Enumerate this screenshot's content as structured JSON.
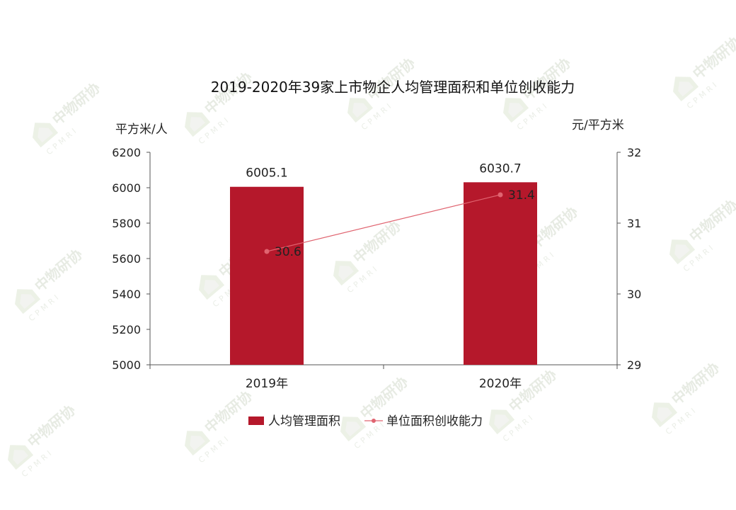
{
  "watermark": {
    "logo_text": "中物研协",
    "logo_sub": "CPMRI"
  },
  "chart_data": {
    "type": "bar",
    "title": "2019-2020年39家上市物企人均管理面积和单位创收能力",
    "categories": [
      "2019年",
      "2020年"
    ],
    "series": [
      {
        "name": "人均管理面积",
        "kind": "bar",
        "axis": "left",
        "color": "#B5182B",
        "values": [
          6005.1,
          6030.7
        ],
        "labels": [
          "6005.1",
          "6030.7"
        ]
      },
      {
        "name": "单位面积创收能力",
        "kind": "line",
        "axis": "right",
        "color": "#E06470",
        "values": [
          30.6,
          31.4
        ],
        "labels": [
          "30.6",
          "31.4"
        ]
      }
    ],
    "y_left": {
      "label": "平方米/人",
      "ylim": [
        5000,
        6200
      ],
      "ticks": [
        "5000",
        "5200",
        "5400",
        "5600",
        "5800",
        "6000",
        "6200"
      ]
    },
    "y_right": {
      "label": "元/平方米",
      "ylim": [
        29,
        32
      ],
      "ticks": [
        "29",
        "30",
        "31",
        "32"
      ]
    },
    "grid": false,
    "legend": "bottom"
  }
}
